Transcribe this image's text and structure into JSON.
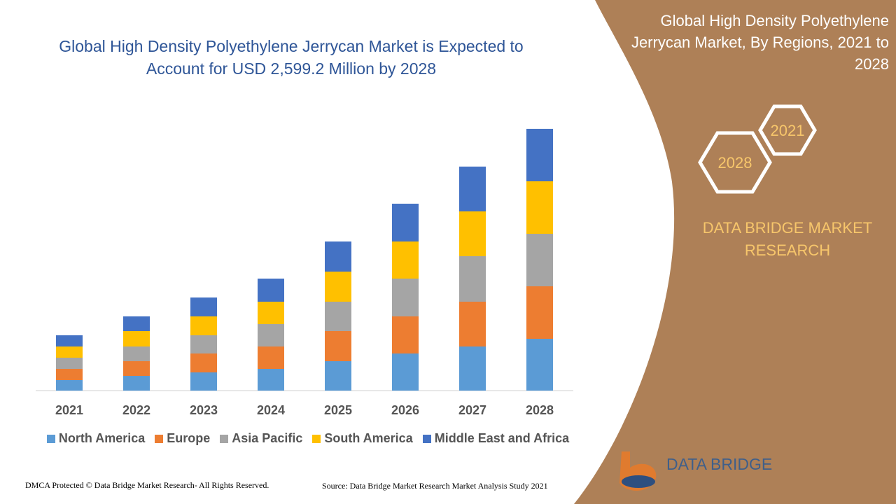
{
  "chart_data": {
    "type": "stacked_bar",
    "title": "Global High Density Polyethylene Jerrycan Market is Expected to Account for USD 2,599.2 Million by 2028",
    "categories": [
      "2021",
      "2022",
      "2023",
      "2024",
      "2025",
      "2026",
      "2027",
      "2028"
    ],
    "series": [
      {
        "name": "North America",
        "color": "#5b9bd5",
        "values": [
          15,
          21,
          26,
          31,
          42,
          53,
          63,
          74
        ]
      },
      {
        "name": "Europe",
        "color": "#ed7d31",
        "values": [
          16,
          21,
          27,
          32,
          43,
          53,
          64,
          75
        ]
      },
      {
        "name": "Asia Pacific",
        "color": "#a5a5a5",
        "values": [
          16,
          21,
          26,
          32,
          42,
          54,
          65,
          75
        ]
      },
      {
        "name": "South America",
        "color": "#ffc000",
        "values": [
          16,
          22,
          27,
          32,
          43,
          53,
          64,
          75
        ]
      },
      {
        "name": "Middle East and Africa",
        "color": "#4472c4",
        "values": [
          16,
          21,
          27,
          33,
          43,
          54,
          64,
          75
        ]
      }
    ],
    "ylim": [
      0,
      400
    ],
    "legend": "bottom"
  },
  "panel": {
    "title": "Global High Density Polyethylene Jerrycan Market, By Regions, 2021 to 2028",
    "hex_start": "2021",
    "hex_end": "2028",
    "brand": "DATA BRIDGE MARKET RESEARCH"
  },
  "logo": "DATA BRIDGE",
  "footer": {
    "left": "DMCA Protected © Data Bridge Market Research- All Rights Reserved.",
    "right": "Source: Data Bridge Market Research Market Analysis Study 2021"
  }
}
